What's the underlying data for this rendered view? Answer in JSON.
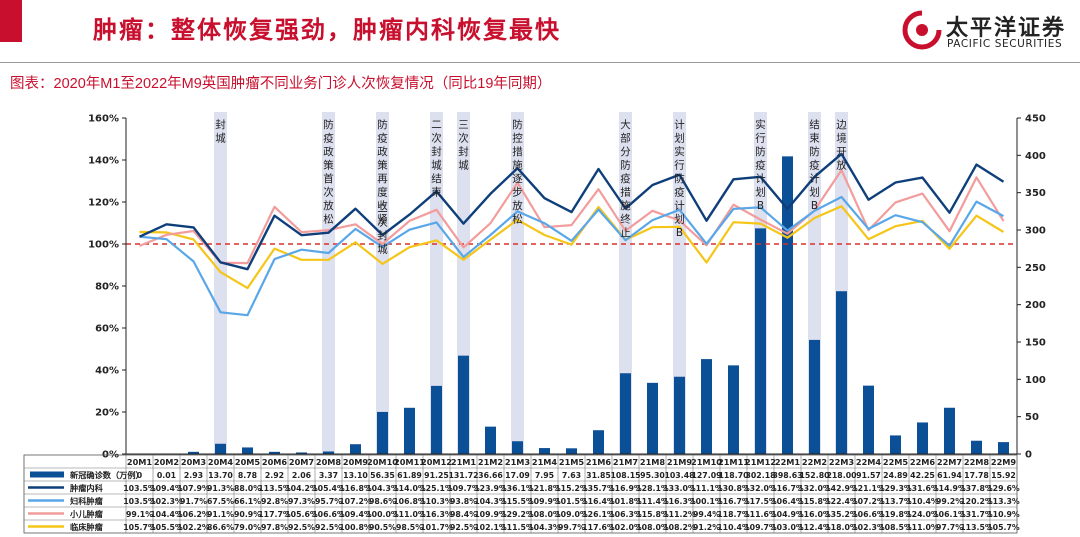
{
  "header": {
    "title": "肿瘤：整体恢复强劲，肿瘤内科恢复最快",
    "logo_cn": "太平洋证券",
    "logo_en": "PACIFIC SECURITIES",
    "brand_color": "#c8102e"
  },
  "subtitle": "图表：2020年M1至2022年M9英国肿瘤不同业务门诊人次恢复情况（同比19年同期）",
  "chart_data": {
    "type": "bar",
    "categories": [
      "20M1",
      "20M2",
      "20M3",
      "20M4",
      "20M5",
      "20M6",
      "20M7",
      "20M8",
      "20M9",
      "20M10",
      "20M11",
      "20M12",
      "21M1",
      "21M2",
      "21M3",
      "21M4",
      "21M5",
      "21M6",
      "21M7",
      "21M8",
      "21M9",
      "21M10",
      "21M11",
      "21M12",
      "22M1",
      "22M2",
      "22M3",
      "22M4",
      "22M5",
      "22M6",
      "22M7",
      "22M8",
      "22M9"
    ],
    "bars": {
      "name": "新冠确诊数（万例）",
      "color": "#0b4f96",
      "axis": "right",
      "values": [
        0,
        0.01,
        2.93,
        13.7,
        8.78,
        2.92,
        2.06,
        3.37,
        13.1,
        56.35,
        61.89,
        91.25,
        131.72,
        36.66,
        17.09,
        7.95,
        7.63,
        31.85,
        108.15,
        95.3,
        103.48,
        127.09,
        118.7,
        302.18,
        398.63,
        152.8,
        218.0,
        91.57,
        24.89,
        42.25,
        61.94,
        17.78,
        15.92
      ],
      "labels": [
        "0",
        "0.01",
        "2.93",
        "13.70",
        "8.78",
        "2.92",
        "2.06",
        "3.37",
        "13.10",
        "56.35",
        "61.89",
        "91.25",
        "131.72",
        "36.66",
        "17.09",
        "7.95",
        "7.63",
        "31.85",
        "108.15",
        "95.30",
        "103.48",
        "127.09",
        "118.70",
        "302.18",
        "398.63",
        "152.80",
        "218.00",
        "91.57",
        "24.89",
        "42.25",
        "61.94",
        "17.78",
        "15.92"
      ]
    },
    "series": [
      {
        "name": "肿瘤内科",
        "color": "#0e3f7a",
        "axis": "left",
        "values": [
          103.5,
          109.4,
          107.9,
          91.3,
          88.0,
          113.5,
          104.2,
          105.4,
          116.8,
          104.3,
          114.0,
          125.1,
          109.7,
          123.9,
          136.1,
          121.8,
          115.2,
          135.7,
          116.9,
          128.1,
          133.0,
          111.1,
          130.8,
          132.0,
          116.7,
          132.0,
          142.9,
          121.1,
          129.3,
          131.6,
          114.9,
          137.8,
          129.6
        ],
        "labels": [
          "103.5%",
          "109.4%",
          "107.9%",
          "91.3%",
          "88.0%",
          "113.5%",
          "104.2%",
          "105.4%",
          "116.8%",
          "104.3%",
          "114.0%",
          "125.1%",
          "109.7%",
          "123.9%",
          "136.1%",
          "121.8%",
          "115.2%",
          "135.7%",
          "116.9%",
          "128.1%",
          "133.0%",
          "111.1%",
          "130.8%",
          "132.0%",
          "116.7%",
          "132.0%",
          "142.9%",
          "121.1%",
          "129.3%",
          "131.6%",
          "114.9%",
          "137.8%",
          "129.6%"
        ]
      },
      {
        "name": "妇科肿瘤",
        "color": "#5aa7e8",
        "axis": "left",
        "values": [
          103.5,
          102.3,
          91.7,
          67.5,
          66.1,
          92.8,
          97.3,
          95.7,
          107.2,
          98.6,
          106.8,
          110.3,
          93.8,
          104.3,
          115.5,
          109.9,
          101.5,
          116.4,
          101.8,
          111.4,
          116.3,
          100.1,
          116.7,
          117.5,
          106.4,
          115.8,
          122.4,
          107.2,
          113.7,
          110.4,
          99.2,
          120.2,
          113.3
        ],
        "labels": [
          "103.5%",
          "102.3%",
          "91.7%",
          "67.5%",
          "66.1%",
          "92.8%",
          "97.3%",
          "95.7%",
          "107.2%",
          "98.6%",
          "106.8%",
          "110.3%",
          "93.8%",
          "104.3%",
          "115.5%",
          "109.9%",
          "101.5%",
          "116.4%",
          "101.8%",
          "111.4%",
          "116.3%",
          "100.1%",
          "116.7%",
          "117.5%",
          "106.4%",
          "115.8%",
          "122.4%",
          "107.2%",
          "113.7%",
          "110.4%",
          "99.2%",
          "120.2%",
          "113.3%"
        ]
      },
      {
        "name": "小儿肿瘤",
        "color": "#f29c9c",
        "axis": "left",
        "values": [
          99.1,
          104.4,
          106.2,
          91.1,
          90.9,
          117.7,
          105.6,
          106.6,
          109.4,
          100.0,
          111.0,
          116.3,
          98.4,
          109.9,
          129.2,
          108.0,
          109.0,
          126.1,
          106.3,
          115.8,
          111.2,
          99.4,
          118.7,
          111.6,
          104.9,
          116.0,
          135.2,
          106.6,
          119.8,
          124.0,
          106.1,
          131.7,
          110.9
        ],
        "labels": [
          "99.1%",
          "104.4%",
          "106.2%",
          "91.1%",
          "90.9%",
          "117.7%",
          "105.6%",
          "106.6%",
          "109.4%",
          "100.0%",
          "111.0%",
          "116.3%",
          "98.4%",
          "109.9%",
          "129.2%",
          "108.0%",
          "109.0%",
          "126.1%",
          "106.3%",
          "115.8%",
          "111.2%",
          "99.4%",
          "118.7%",
          "111.6%",
          "104.9%",
          "116.0%",
          "135.2%",
          "106.6%",
          "119.8%",
          "124.0%",
          "106.1%",
          "131.7%",
          "110.9%"
        ]
      },
      {
        "name": "临床肿瘤",
        "color": "#f5c518",
        "axis": "left",
        "values": [
          105.7,
          105.5,
          102.2,
          86.6,
          79.0,
          97.8,
          92.5,
          92.5,
          100.8,
          90.5,
          98.5,
          101.7,
          92.5,
          102.1,
          111.5,
          104.3,
          99.7,
          117.6,
          102.0,
          108.0,
          108.2,
          91.2,
          110.4,
          109.7,
          103.0,
          112.4,
          118.0,
          102.3,
          108.5,
          111.0,
          97.7,
          113.5,
          105.7
        ],
        "labels": [
          "105.7%",
          "105.5%",
          "102.2%",
          "86.6%",
          "79.0%",
          "97.8%",
          "92.5%",
          "92.5%",
          "100.8%",
          "90.5%",
          "98.5%",
          "101.7%",
          "92.5%",
          "102.1%",
          "111.5%",
          "104.3%",
          "99.7%",
          "117.6%",
          "102.0%",
          "108.0%",
          "108.2%",
          "91.2%",
          "110.4%",
          "109.7%",
          "103.0%",
          "112.4%",
          "118.0%",
          "102.3%",
          "108.5%",
          "111.0%",
          "97.7%",
          "113.5%",
          "105.7%"
        ]
      }
    ],
    "left_axis": {
      "min": 0,
      "max": 160,
      "ticks": [
        "0%",
        "20%",
        "40%",
        "60%",
        "80%",
        "100%",
        "120%",
        "140%",
        "160%"
      ]
    },
    "right_axis": {
      "min": 0,
      "max": 450,
      "ticks": [
        "0",
        "50",
        "100",
        "150",
        "200",
        "250",
        "300",
        "350",
        "400",
        "450"
      ]
    },
    "reference_line": {
      "value": 100,
      "color": "#d9302c"
    },
    "event_band_color": "#dde0ef",
    "events": [
      {
        "category": "20M4",
        "text": "封城"
      },
      {
        "category": "20M8",
        "text": "防疫政策首次放松"
      },
      {
        "category": "20M10",
        "text": "防疫政策再度收紧"
      },
      {
        "category": "20M10",
        "text": "二次封城"
      },
      {
        "category": "20M12",
        "text": "二次封城结束"
      },
      {
        "category": "21M1",
        "text": "三次封城"
      },
      {
        "category": "21M3",
        "text": "防控措施逐步放松"
      },
      {
        "category": "21M7",
        "text": "大部分防疫措施终止"
      },
      {
        "category": "21M9",
        "text": "计划实行防疫计划B"
      },
      {
        "category": "21M12",
        "text": "实行防疫计划B"
      },
      {
        "category": "22M2",
        "text": "结束防疫计划B"
      },
      {
        "category": "22M3",
        "text": "边境开放"
      }
    ],
    "grid": false
  }
}
